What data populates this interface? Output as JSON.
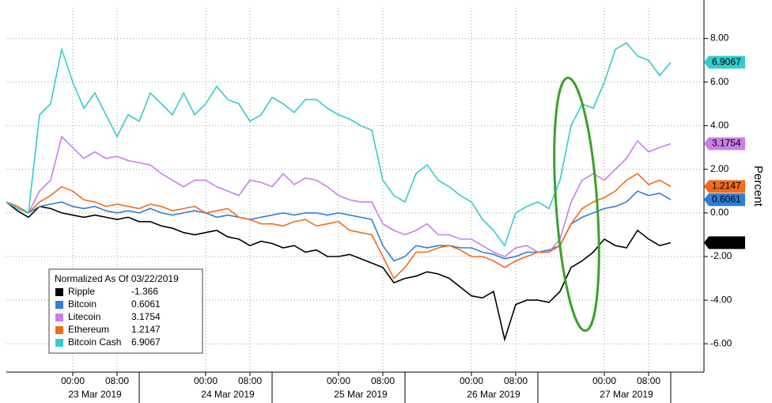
{
  "chart_data": {
    "type": "line",
    "y_label": "Percent",
    "legend_title": "Normalized As Of 03/22/2019",
    "x": [
      "2019-03-22 12:00",
      "2019-03-22 14:00",
      "2019-03-22 16:00",
      "2019-03-22 18:00",
      "2019-03-22 20:00",
      "2019-03-22 22:00",
      "2019-03-23 00:00",
      "2019-03-23 02:00",
      "2019-03-23 04:00",
      "2019-03-23 06:00",
      "2019-03-23 08:00",
      "2019-03-23 10:00",
      "2019-03-23 12:00",
      "2019-03-23 14:00",
      "2019-03-23 16:00",
      "2019-03-23 18:00",
      "2019-03-23 20:00",
      "2019-03-23 22:00",
      "2019-03-24 00:00",
      "2019-03-24 02:00",
      "2019-03-24 04:00",
      "2019-03-24 06:00",
      "2019-03-24 08:00",
      "2019-03-24 10:00",
      "2019-03-24 12:00",
      "2019-03-24 14:00",
      "2019-03-24 16:00",
      "2019-03-24 18:00",
      "2019-03-24 20:00",
      "2019-03-24 22:00",
      "2019-03-25 00:00",
      "2019-03-25 02:00",
      "2019-03-25 04:00",
      "2019-03-25 06:00",
      "2019-03-25 08:00",
      "2019-03-25 10:00",
      "2019-03-25 12:00",
      "2019-03-25 14:00",
      "2019-03-25 16:00",
      "2019-03-25 18:00",
      "2019-03-25 20:00",
      "2019-03-25 22:00",
      "2019-03-26 00:00",
      "2019-03-26 02:00",
      "2019-03-26 04:00",
      "2019-03-26 06:00",
      "2019-03-26 08:00",
      "2019-03-26 10:00",
      "2019-03-26 12:00",
      "2019-03-26 14:00",
      "2019-03-26 16:00",
      "2019-03-26 18:00",
      "2019-03-26 20:00",
      "2019-03-26 22:00",
      "2019-03-27 00:00",
      "2019-03-27 02:00",
      "2019-03-27 04:00",
      "2019-03-27 06:00",
      "2019-03-27 08:00",
      "2019-03-27 10:00",
      "2019-03-27 12:00"
    ],
    "series": [
      {
        "name": "Ripple",
        "color": "#000000",
        "last": -1.366,
        "values": [
          0.5,
          0.1,
          -0.2,
          0.3,
          0.2,
          0.0,
          -0.1,
          -0.2,
          -0.1,
          -0.2,
          -0.3,
          -0.2,
          -0.4,
          -0.4,
          -0.6,
          -0.7,
          -0.9,
          -1.0,
          -0.9,
          -0.8,
          -1.1,
          -1.2,
          -1.5,
          -1.3,
          -1.4,
          -1.6,
          -1.5,
          -1.8,
          -1.7,
          -2.0,
          -2.0,
          -1.9,
          -2.1,
          -2.3,
          -2.5,
          -3.2,
          -3.0,
          -2.9,
          -2.7,
          -2.8,
          -3.0,
          -3.4,
          -3.8,
          -3.9,
          -3.6,
          -5.8,
          -4.2,
          -4.0,
          -4.0,
          -4.1,
          -3.6,
          -2.5,
          -2.2,
          -1.8,
          -1.2,
          -1.5,
          -1.6,
          -0.8,
          -1.2,
          -1.5,
          -1.366
        ]
      },
      {
        "name": "Bitcoin",
        "color": "#2f7ed8",
        "last": 0.6061,
        "values": [
          0.5,
          0.3,
          0.0,
          0.3,
          0.4,
          0.5,
          0.3,
          0.2,
          0.3,
          0.1,
          0.0,
          0.1,
          0.0,
          0.2,
          0.0,
          -0.1,
          0.0,
          0.1,
          0.0,
          -0.2,
          -0.1,
          -0.2,
          -0.3,
          -0.2,
          -0.1,
          0.0,
          -0.1,
          0.0,
          0.0,
          -0.1,
          0.0,
          -0.1,
          -0.2,
          -0.3,
          -1.5,
          -2.2,
          -2.0,
          -1.5,
          -1.6,
          -1.5,
          -1.5,
          -1.6,
          -1.6,
          -1.8,
          -1.9,
          -2.1,
          -2.0,
          -1.8,
          -1.8,
          -1.7,
          -1.5,
          -0.5,
          -0.2,
          0.0,
          0.2,
          0.3,
          0.5,
          1.0,
          0.8,
          0.9,
          0.6061
        ]
      },
      {
        "name": "Litecoin",
        "color": "#c87fe8",
        "last": 3.1754,
        "values": [
          0.5,
          0.2,
          0.0,
          1.0,
          1.5,
          3.5,
          3.0,
          2.5,
          2.8,
          2.5,
          2.6,
          2.4,
          2.3,
          2.2,
          1.8,
          1.5,
          1.2,
          1.5,
          1.5,
          1.2,
          1.0,
          0.8,
          1.5,
          1.4,
          1.2,
          1.8,
          1.3,
          1.6,
          1.5,
          1.2,
          0.8,
          0.6,
          0.5,
          0.5,
          -0.5,
          -0.8,
          -1.0,
          -0.8,
          -0.5,
          -1.0,
          -1.0,
          -1.2,
          -1.2,
          -1.5,
          -1.8,
          -2.0,
          -1.6,
          -1.5,
          -1.8,
          -1.8,
          -1.2,
          0.5,
          1.5,
          1.8,
          1.5,
          2.0,
          2.5,
          3.3,
          2.8,
          3.0,
          3.1754
        ]
      },
      {
        "name": "Ethereum",
        "color": "#f26b1d",
        "last": 1.2147,
        "values": [
          0.5,
          0.3,
          0.0,
          0.5,
          0.8,
          1.2,
          1.0,
          0.6,
          0.5,
          0.3,
          0.4,
          0.3,
          0.2,
          0.4,
          0.3,
          0.1,
          0.2,
          0.3,
          0.0,
          0.1,
          0.2,
          -0.2,
          -0.3,
          -0.5,
          -0.5,
          -0.6,
          -0.4,
          -0.3,
          -0.6,
          -0.5,
          -0.4,
          -0.8,
          -0.9,
          -1.0,
          -2.0,
          -3.0,
          -2.5,
          -1.8,
          -1.8,
          -1.6,
          -1.5,
          -1.7,
          -2.0,
          -2.0,
          -2.2,
          -2.5,
          -2.2,
          -2.0,
          -1.8,
          -1.8,
          -1.5,
          -0.5,
          0.2,
          0.5,
          0.7,
          1.0,
          1.5,
          1.8,
          1.3,
          1.5,
          1.2147
        ]
      },
      {
        "name": "Bitcoin Cash",
        "color": "#33cccc",
        "last": 6.9067,
        "values": [
          0.5,
          0.2,
          0.0,
          4.5,
          5.0,
          7.5,
          6.0,
          4.8,
          5.5,
          4.5,
          3.5,
          4.5,
          4.2,
          5.5,
          5.0,
          4.5,
          5.5,
          4.5,
          5.0,
          5.8,
          5.2,
          5.0,
          4.2,
          4.5,
          5.3,
          5.0,
          4.6,
          5.2,
          5.2,
          4.8,
          4.5,
          4.3,
          4.0,
          3.8,
          1.5,
          0.8,
          0.5,
          1.8,
          2.2,
          1.5,
          1.2,
          0.8,
          0.5,
          -0.3,
          -0.8,
          -1.5,
          0.0,
          0.3,
          0.5,
          0.2,
          1.5,
          4.0,
          5.0,
          4.8,
          6.0,
          7.5,
          7.8,
          7.2,
          7.0,
          6.3,
          6.9067
        ]
      }
    ],
    "xlim": [
      "2019-03-22 12:00",
      "2019-03-27 18:00"
    ],
    "xticks": [
      {
        "value": "2019-03-23 00:00",
        "label": "00:00"
      },
      {
        "value": "2019-03-23 08:00",
        "label": "08:00"
      },
      {
        "value": "2019-03-24 00:00",
        "label": "00:00"
      },
      {
        "value": "2019-03-24 08:00",
        "label": "08:00"
      },
      {
        "value": "2019-03-25 00:00",
        "label": "00:00"
      },
      {
        "value": "2019-03-25 08:00",
        "label": "08:00"
      },
      {
        "value": "2019-03-26 00:00",
        "label": "00:00"
      },
      {
        "value": "2019-03-26 08:00",
        "label": "08:00"
      },
      {
        "value": "2019-03-27 00:00",
        "label": "00:00"
      },
      {
        "value": "2019-03-27 08:00",
        "label": "08:00"
      }
    ],
    "x_dates": [
      {
        "value": "2019-03-23 04:00",
        "label": "23 Mar 2019"
      },
      {
        "value": "2019-03-24 04:00",
        "label": "24 Mar 2019"
      },
      {
        "value": "2019-03-25 04:00",
        "label": "25 Mar 2019"
      },
      {
        "value": "2019-03-26 04:00",
        "label": "26 Mar 2019"
      },
      {
        "value": "2019-03-27 04:00",
        "label": "27 Mar 2019"
      }
    ],
    "ylim": [
      -7.3,
      9.4
    ],
    "yticks": [
      {
        "value": -6,
        "label": "-6.00"
      },
      {
        "value": -4,
        "label": "-4.00"
      },
      {
        "value": -2,
        "label": "-2.00"
      },
      {
        "value": 0,
        "label": "0.00"
      },
      {
        "value": 2,
        "label": "2.00"
      },
      {
        "value": 4,
        "label": "4.00"
      },
      {
        "value": 6,
        "label": "6.00"
      },
      {
        "value": 8,
        "label": "8.00"
      }
    ],
    "grid": true
  }
}
